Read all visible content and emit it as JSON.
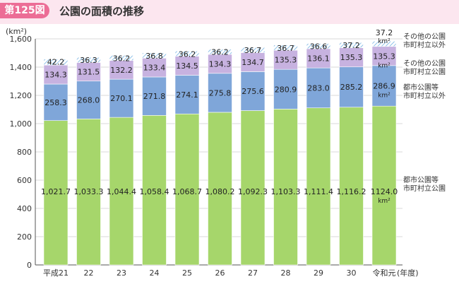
{
  "header": {
    "badge": "第125図",
    "title": "公園の面積の推移"
  },
  "colors": {
    "header_bg": "#fce6ef",
    "badge_bg": "#ec6d96",
    "green": "#a6d66b",
    "blue": "#7fa6d9",
    "purple": "#c7b2e0",
    "hatch": "#b9d7ef"
  },
  "chart_data": {
    "type": "bar",
    "stacked": true,
    "unit_label": "(km²)",
    "x_suffix": "(年度)",
    "ylim": [
      0,
      1600
    ],
    "yticks": [
      "0",
      "200",
      "400",
      "600",
      "800",
      "1,000",
      "1,200",
      "1,400",
      "1,600"
    ],
    "categories": [
      "平成21",
      "22",
      "23",
      "24",
      "25",
      "26",
      "27",
      "28",
      "29",
      "30",
      "令和元"
    ],
    "series": [
      {
        "name": "都市公園等市町村立公園",
        "labels": [
          "1,021.7",
          "1,033.3",
          "1,044.4",
          "1,058.4",
          "1,068.7",
          "1,080.2",
          "1,092.3",
          "1,103.3",
          "1,111.4",
          "1,116.2",
          "1124.0"
        ],
        "values": [
          1021.7,
          1033.3,
          1044.4,
          1058.4,
          1068.7,
          1080.2,
          1092.3,
          1103.3,
          1111.4,
          1116.2,
          1124.0
        ],
        "legend": [
          "都市公園等",
          "市町村立公園"
        ]
      },
      {
        "name": "都市公園等市町村立以外",
        "labels": [
          "258.3",
          "268.0",
          "270.1",
          "271.8",
          "274.1",
          "275.8",
          "275.6",
          "280.9",
          "283.0",
          "285.2",
          "286.9"
        ],
        "values": [
          258.3,
          268.0,
          270.1,
          271.8,
          274.1,
          275.8,
          275.6,
          280.9,
          283.0,
          285.2,
          286.9
        ],
        "legend": [
          "都市公園等",
          "市町村立以外"
        ]
      },
      {
        "name": "その他の公園市町村立公園",
        "labels": [
          "134.3",
          "131.5",
          "132.2",
          "133.4",
          "134.5",
          "134.3",
          "134.7",
          "135.3",
          "136.1",
          "135.3",
          "135.3"
        ],
        "values": [
          134.3,
          131.5,
          132.2,
          133.4,
          134.5,
          134.3,
          134.7,
          135.3,
          136.1,
          135.3,
          135.3
        ],
        "legend": [
          "その他の公園",
          "市町村立公園"
        ]
      },
      {
        "name": "その他の公園市町村立以外",
        "labels": [
          "42.2",
          "36.3",
          "36.2",
          "36.8",
          "36.2",
          "36.2",
          "36.7",
          "36.7",
          "36.6",
          "37.2",
          "37.2"
        ],
        "values": [
          42.2,
          36.3,
          36.2,
          36.8,
          36.2,
          36.2,
          36.7,
          36.7,
          36.6,
          37.2,
          37.2
        ],
        "legend": [
          "その他の公園",
          "市町村立以外"
        ]
      }
    ],
    "last_bar_unit": "km²"
  }
}
